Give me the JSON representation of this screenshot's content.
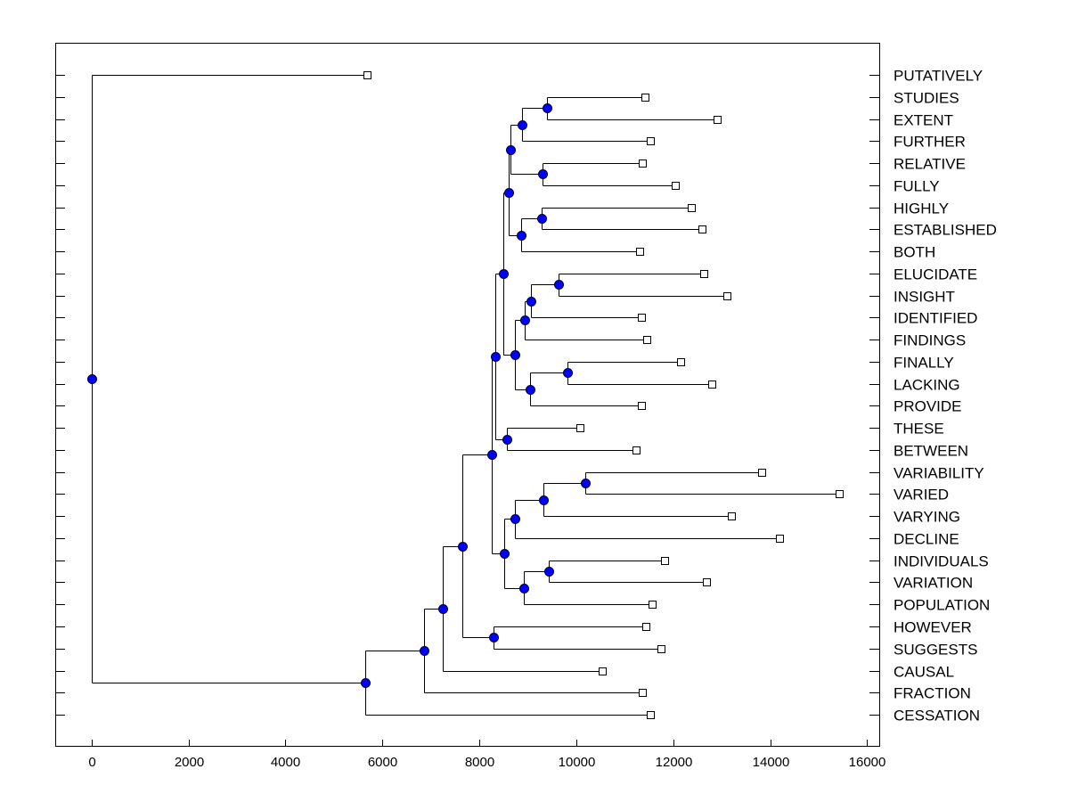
{
  "chart_data": {
    "type": "dendrogram",
    "title": "",
    "xlabel": "",
    "ylabel": "",
    "xlim": [
      -750,
      16250
    ],
    "xticks": [
      0,
      2000,
      4000,
      6000,
      8000,
      10000,
      12000,
      14000,
      16000
    ],
    "grid": false,
    "colors": {
      "node": "#0000ff",
      "node_stroke": "#000033",
      "line": "#000000",
      "leaf_fill": "#ffffff"
    },
    "leaves": [
      {
        "label": "PUTATIVELY",
        "x": 5680
      },
      {
        "label": "STUDIES",
        "x": 11420
      },
      {
        "label": "EXTENT",
        "x": 12900
      },
      {
        "label": "FURTHER",
        "x": 11520
      },
      {
        "label": "RELATIVE",
        "x": 11370
      },
      {
        "label": "FULLY",
        "x": 12050
      },
      {
        "label": "HIGHLY",
        "x": 12380
      },
      {
        "label": "ESTABLISHED",
        "x": 12590
      },
      {
        "label": "BOTH",
        "x": 11300
      },
      {
        "label": "ELUCIDATE",
        "x": 12630
      },
      {
        "label": "INSIGHT",
        "x": 13100
      },
      {
        "label": "IDENTIFIED",
        "x": 11350
      },
      {
        "label": "FINDINGS",
        "x": 11450
      },
      {
        "label": "FINALLY",
        "x": 12150
      },
      {
        "label": "LACKING",
        "x": 12800
      },
      {
        "label": "PROVIDE",
        "x": 11350
      },
      {
        "label": "THESE",
        "x": 10070
      },
      {
        "label": "BETWEEN",
        "x": 11230
      },
      {
        "label": "VARIABILITY",
        "x": 13820
      },
      {
        "label": "VARIED",
        "x": 15430
      },
      {
        "label": "VARYING",
        "x": 13200
      },
      {
        "label": "DECLINE",
        "x": 14200
      },
      {
        "label": "INDIVIDUALS",
        "x": 11820
      },
      {
        "label": "VARIATION",
        "x": 12680
      },
      {
        "label": "POPULATION",
        "x": 11560
      },
      {
        "label": "HOWEVER",
        "x": 11430
      },
      {
        "label": "SUGGESTS",
        "x": 11740
      },
      {
        "label": "CAUSAL",
        "x": 10540
      },
      {
        "label": "FRACTION",
        "x": 11360
      },
      {
        "label": "CESSATION",
        "x": 11520
      }
    ],
    "merges": [
      {
        "x": 9400,
        "children": [
          1,
          2
        ]
      },
      {
        "x": 8880,
        "children": [
          30,
          3
        ]
      },
      {
        "x": 9310,
        "children": [
          4,
          5
        ]
      },
      {
        "x": 8640,
        "children": [
          31,
          32
        ]
      },
      {
        "x": 9290,
        "children": [
          6,
          7
        ]
      },
      {
        "x": 8870,
        "children": [
          34,
          8
        ]
      },
      {
        "x": 8600,
        "children": [
          33,
          35
        ]
      },
      {
        "x": 9640,
        "children": [
          9,
          10
        ]
      },
      {
        "x": 9060,
        "children": [
          37,
          11
        ]
      },
      {
        "x": 8940,
        "children": [
          38,
          12
        ]
      },
      {
        "x": 9820,
        "children": [
          13,
          14
        ]
      },
      {
        "x": 9040,
        "children": [
          40,
          15
        ]
      },
      {
        "x": 8730,
        "children": [
          39,
          41
        ]
      },
      {
        "x": 8490,
        "children": [
          36,
          42
        ]
      },
      {
        "x": 8570,
        "children": [
          16,
          17
        ]
      },
      {
        "x": 8330,
        "children": [
          43,
          44
        ]
      },
      {
        "x": 10190,
        "children": [
          18,
          19
        ]
      },
      {
        "x": 9320,
        "children": [
          46,
          20
        ]
      },
      {
        "x": 8730,
        "children": [
          47,
          21
        ]
      },
      {
        "x": 9440,
        "children": [
          22,
          23
        ]
      },
      {
        "x": 8910,
        "children": [
          49,
          24
        ]
      },
      {
        "x": 8510,
        "children": [
          48,
          50
        ]
      },
      {
        "x": 8260,
        "children": [
          45,
          51
        ]
      },
      {
        "x": 8290,
        "children": [
          25,
          26
        ]
      },
      {
        "x": 7640,
        "children": [
          52,
          53
        ]
      },
      {
        "x": 7250,
        "children": [
          54,
          27
        ]
      },
      {
        "x": 6850,
        "children": [
          55,
          28
        ]
      },
      {
        "x": 5650,
        "children": [
          56,
          29
        ]
      },
      {
        "x": 0,
        "children": [
          0,
          57
        ]
      }
    ]
  }
}
